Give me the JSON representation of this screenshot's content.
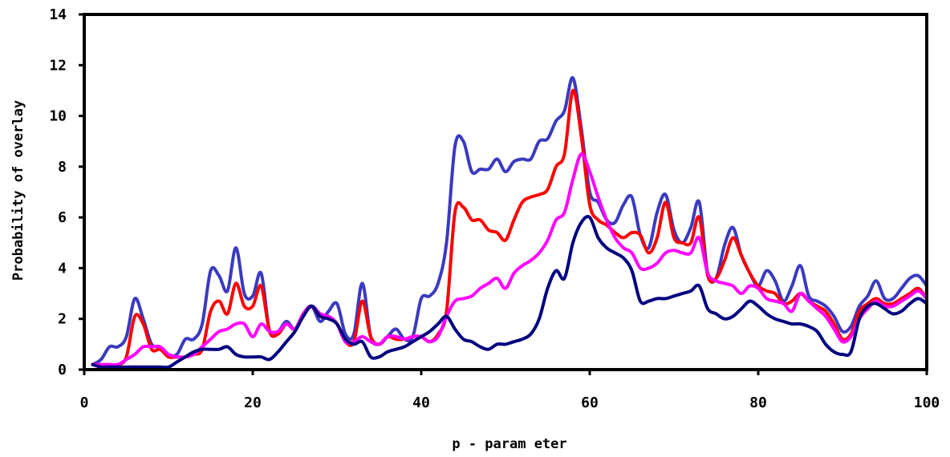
{
  "chart_data": {
    "type": "line",
    "xlabel": "p - param eter",
    "ylabel": "Probability of overlay",
    "xlim": [
      0,
      100
    ],
    "ylim": [
      0,
      14
    ],
    "xticks": [
      0,
      20,
      40,
      60,
      80,
      100
    ],
    "yticks": [
      0,
      2,
      4,
      6,
      8,
      10,
      12,
      14
    ],
    "grid": false,
    "x": [
      1,
      2,
      3,
      4,
      5,
      6,
      7,
      8,
      9,
      10,
      11,
      12,
      13,
      14,
      15,
      16,
      17,
      18,
      19,
      20,
      21,
      22,
      23,
      24,
      25,
      26,
      27,
      28,
      29,
      30,
      31,
      32,
      33,
      34,
      35,
      36,
      37,
      38,
      39,
      40,
      41,
      42,
      43,
      44,
      45,
      46,
      47,
      48,
      49,
      50,
      51,
      52,
      53,
      54,
      55,
      56,
      57,
      58,
      59,
      60,
      61,
      62,
      63,
      64,
      65,
      66,
      67,
      68,
      69,
      70,
      71,
      72,
      73,
      74,
      75,
      76,
      77,
      78,
      79,
      80,
      81,
      82,
      83,
      84,
      85,
      86,
      87,
      88,
      89,
      90,
      91,
      92,
      93,
      94,
      95,
      96,
      97,
      98,
      99,
      100
    ],
    "series": [
      {
        "color": "#3a3ac0",
        "values": [
          0.2,
          0.4,
          0.9,
          0.9,
          1.3,
          2.8,
          2.0,
          1.0,
          0.9,
          0.6,
          0.6,
          1.2,
          1.2,
          1.8,
          3.9,
          3.7,
          3.1,
          4.8,
          3.0,
          2.9,
          3.8,
          1.5,
          1.5,
          1.9,
          1.6,
          2.2,
          2.5,
          1.9,
          2.3,
          2.6,
          1.4,
          1.4,
          3.4,
          1.3,
          1.0,
          1.3,
          1.6,
          1.2,
          1.3,
          2.8,
          2.9,
          3.4,
          5.0,
          8.8,
          9.0,
          7.8,
          7.9,
          7.9,
          8.3,
          7.8,
          8.2,
          8.3,
          8.3,
          9.0,
          9.1,
          9.8,
          10.2,
          11.5,
          9.5,
          7.0,
          6.6,
          5.9,
          5.8,
          6.5,
          6.8,
          5.3,
          4.8,
          6.2,
          6.9,
          5.5,
          5.0,
          5.6,
          6.6,
          3.8,
          3.6,
          4.9,
          5.6,
          4.5,
          3.8,
          3.3,
          3.9,
          3.5,
          2.7,
          3.3,
          4.1,
          2.9,
          2.7,
          2.5,
          2.1,
          1.5,
          1.7,
          2.5,
          2.9,
          3.5,
          2.8,
          2.8,
          3.2,
          3.6,
          3.7,
          3.3
        ]
      },
      {
        "color": "#ff0000",
        "values": [
          0.2,
          0.2,
          0.2,
          0.2,
          0.5,
          2.1,
          1.8,
          0.8,
          0.8,
          0.5,
          0.5,
          0.5,
          0.6,
          0.8,
          2.3,
          2.7,
          2.2,
          3.4,
          2.5,
          2.5,
          3.3,
          1.5,
          1.4,
          1.8,
          1.6,
          2.2,
          2.5,
          2.1,
          2.1,
          1.8,
          1.1,
          1.1,
          2.7,
          1.3,
          1.0,
          1.3,
          1.2,
          1.2,
          1.3,
          1.3,
          1.1,
          1.4,
          2.3,
          6.2,
          6.4,
          5.9,
          5.9,
          5.5,
          5.4,
          5.1,
          5.9,
          6.6,
          6.8,
          6.9,
          7.1,
          8.0,
          8.5,
          11.0,
          9.2,
          6.5,
          5.9,
          5.7,
          5.4,
          5.2,
          5.4,
          5.3,
          4.6,
          5.2,
          6.6,
          5.2,
          5.0,
          5.0,
          6.0,
          3.7,
          3.6,
          4.3,
          5.2,
          4.5,
          3.8,
          3.3,
          3.1,
          3.0,
          2.6,
          2.7,
          3.0,
          2.7,
          2.5,
          2.3,
          1.8,
          1.2,
          1.4,
          2.3,
          2.6,
          2.8,
          2.6,
          2.6,
          2.8,
          3.0,
          3.2,
          2.8
        ]
      },
      {
        "color": "#ff00ff",
        "values": [
          0.2,
          0.2,
          0.2,
          0.2,
          0.4,
          0.6,
          0.9,
          0.9,
          0.9,
          0.6,
          0.5,
          0.5,
          0.6,
          0.9,
          1.2,
          1.5,
          1.6,
          1.8,
          1.8,
          1.3,
          1.8,
          1.5,
          1.5,
          1.8,
          1.6,
          2.2,
          2.5,
          2.2,
          2.1,
          1.8,
          1.1,
          1.1,
          1.3,
          1.1,
          1.0,
          1.3,
          1.3,
          1.2,
          1.3,
          1.3,
          1.1,
          1.3,
          2.1,
          2.7,
          2.8,
          2.9,
          3.2,
          3.4,
          3.6,
          3.2,
          3.8,
          4.1,
          4.3,
          4.6,
          5.1,
          5.9,
          6.2,
          7.5,
          8.5,
          7.8,
          6.8,
          5.9,
          5.2,
          4.8,
          4.6,
          4.0,
          4.0,
          4.2,
          4.6,
          4.7,
          4.6,
          4.6,
          5.2,
          3.8,
          3.5,
          3.4,
          3.3,
          3.0,
          3.3,
          3.2,
          2.8,
          2.7,
          2.6,
          2.3,
          3.0,
          2.7,
          2.4,
          2.1,
          1.6,
          1.1,
          1.3,
          2.0,
          2.4,
          2.7,
          2.5,
          2.5,
          2.7,
          2.9,
          3.1,
          2.8
        ]
      },
      {
        "color": "#000080",
        "values": [
          0.2,
          0.1,
          0.1,
          0.1,
          0.1,
          0.1,
          0.1,
          0.1,
          0.1,
          0.1,
          0.3,
          0.5,
          0.7,
          0.8,
          0.8,
          0.8,
          0.9,
          0.6,
          0.5,
          0.5,
          0.5,
          0.4,
          0.7,
          1.1,
          1.5,
          2.1,
          2.5,
          2.1,
          2.0,
          1.8,
          1.2,
          1.0,
          1.1,
          0.5,
          0.5,
          0.7,
          0.8,
          0.9,
          1.1,
          1.3,
          1.5,
          1.8,
          2.1,
          1.6,
          1.2,
          1.1,
          0.9,
          0.8,
          1.0,
          1.0,
          1.1,
          1.2,
          1.4,
          2.0,
          3.2,
          3.9,
          3.6,
          5.0,
          5.8,
          6.0,
          5.2,
          4.8,
          4.6,
          4.4,
          3.9,
          2.7,
          2.7,
          2.8,
          2.8,
          2.9,
          3.0,
          3.1,
          3.3,
          2.4,
          2.2,
          2.0,
          2.1,
          2.4,
          2.7,
          2.5,
          2.2,
          2.0,
          1.9,
          1.8,
          1.8,
          1.7,
          1.5,
          1.0,
          0.7,
          0.6,
          0.7,
          2.0,
          2.5,
          2.6,
          2.4,
          2.2,
          2.3,
          2.6,
          2.8,
          2.6
        ]
      }
    ]
  }
}
